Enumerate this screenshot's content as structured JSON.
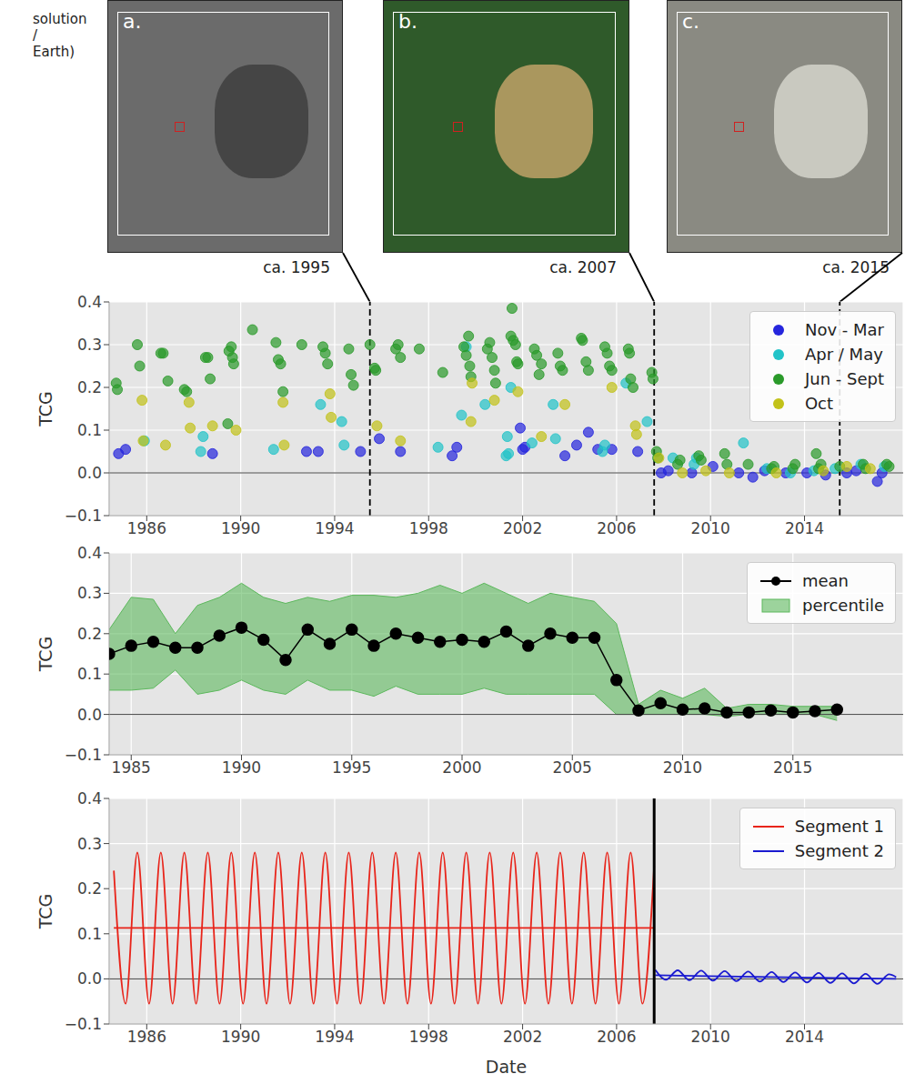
{
  "cropped_text": [
    "solution",
    "/",
    "Earth)"
  ],
  "panels": [
    {
      "letter": "a.",
      "caption": "ca. 1995"
    },
    {
      "letter": "b.",
      "caption": "ca. 2007"
    },
    {
      "letter": "c.",
      "caption": "ca. 2015"
    }
  ],
  "chart_data": [
    {
      "type": "scatter",
      "y_label": "TCG",
      "xlim": [
        1984.4,
        2018.2
      ],
      "xticks": [
        1986,
        1990,
        1994,
        1998,
        2002,
        2006,
        2010,
        2014
      ],
      "ylim": [
        -0.1,
        0.4
      ],
      "yticks": [
        {
          "value": -0.1,
          "label": "−0.1"
        },
        {
          "value": 0,
          "label": "0.0"
        },
        0.1,
        0.2,
        0.3,
        0.4
      ],
      "grid": true,
      "legend": "upper right",
      "baseline": 0,
      "vlines": [
        1995.5,
        2007.6,
        2015.5
      ],
      "series": [
        {
          "name": "Nov - Mar",
          "color": "#2525dd",
          "marker": "circle",
          "x": [
            1984.8,
            1985.1,
            1988.8,
            1992.8,
            1993.3,
            1995.1,
            1995.9,
            1996.8,
            1999.0,
            1999.2,
            2001.9,
            2002.0,
            2002.1,
            2003.8,
            2004.3,
            2004.8,
            2005.2,
            2005.8,
            2006.9,
            2007.9,
            2008.2,
            2009.2,
            2010.1,
            2011.2,
            2011.8,
            2012.3,
            2013.2,
            2014.1,
            2014.9,
            2015.8,
            2016.2,
            2017.1,
            2017.3
          ],
          "values": [
            0.045,
            0.055,
            0.045,
            0.05,
            0.05,
            0.05,
            0.08,
            0.05,
            0.04,
            0.06,
            0.105,
            0.055,
            0.06,
            0.04,
            0.065,
            0.095,
            0.055,
            0.055,
            0.05,
            0.0,
            0.005,
            0.0,
            0.015,
            0.0,
            -0.01,
            0.005,
            0.0,
            0.0,
            -0.005,
            0.0,
            0.005,
            -0.02,
            0.0
          ]
        },
        {
          "name": "Apr / May",
          "color": "#22c3c8",
          "marker": "circle",
          "x": [
            1985.9,
            1988.3,
            1988.4,
            1991.4,
            1993.4,
            1994.3,
            1994.4,
            1998.4,
            1999.4,
            1999.6,
            2000.4,
            2001.3,
            2001.35,
            2001.4,
            2001.5,
            2002.4,
            2003.3,
            2003.4,
            2005.4,
            2005.5,
            2006.4,
            2007.3,
            2008.4,
            2009.3,
            2009.4,
            2011.4,
            2012.4,
            2013.4,
            2014.4,
            2015.3,
            2016.4,
            2017.4
          ],
          "values": [
            0.075,
            0.05,
            0.085,
            0.055,
            0.16,
            0.12,
            0.065,
            0.06,
            0.135,
            0.295,
            0.16,
            0.04,
            0.085,
            0.045,
            0.2,
            0.07,
            0.16,
            0.08,
            0.05,
            0.065,
            0.21,
            0.12,
            0.035,
            0.02,
            0.035,
            0.07,
            0.01,
            0.0,
            0.005,
            0.01,
            0.02,
            0.015
          ]
        },
        {
          "name": "Jun - Sept",
          "color": "#2a9a2a",
          "marker": "circle",
          "x": [
            1984.7,
            1984.75,
            1985.6,
            1985.7,
            1986.6,
            1986.7,
            1986.9,
            1987.6,
            1987.7,
            1988.5,
            1988.6,
            1988.7,
            1989.45,
            1989.5,
            1989.6,
            1989.65,
            1989.7,
            1990.5,
            1991.5,
            1991.6,
            1991.7,
            1991.8,
            1992.6,
            1993.5,
            1993.6,
            1993.7,
            1994.6,
            1994.7,
            1994.8,
            1995.5,
            1995.7,
            1995.75,
            1996.6,
            1996.7,
            1996.8,
            1997.6,
            1998.6,
            1999.5,
            1999.6,
            1999.7,
            1999.75,
            1999.8,
            2000.5,
            2000.6,
            2000.7,
            2000.8,
            2000.85,
            2001.5,
            2001.55,
            2001.6,
            2001.7,
            2001.75,
            2001.8,
            2002.5,
            2002.6,
            2002.7,
            2002.8,
            2003.5,
            2003.6,
            2003.7,
            2004.5,
            2004.55,
            2004.7,
            2004.8,
            2005.5,
            2005.6,
            2005.7,
            2005.8,
            2006.5,
            2006.55,
            2006.6,
            2006.7,
            2007.5,
            2007.55,
            2007.7,
            2007.75,
            2008.6,
            2008.7,
            2009.5,
            2009.6,
            2010.6,
            2010.7,
            2011.6,
            2012.6,
            2012.7,
            2013.5,
            2013.6,
            2014.5,
            2014.6,
            2014.7,
            2015.5,
            2016.5,
            2016.6,
            2017.5,
            2017.6
          ],
          "values": [
            0.21,
            0.195,
            0.3,
            0.25,
            0.28,
            0.28,
            0.215,
            0.195,
            0.19,
            0.27,
            0.27,
            0.22,
            0.115,
            0.285,
            0.295,
            0.27,
            0.255,
            0.335,
            0.305,
            0.265,
            0.255,
            0.19,
            0.3,
            0.295,
            0.28,
            0.255,
            0.29,
            0.23,
            0.205,
            0.3,
            0.245,
            0.24,
            0.29,
            0.3,
            0.27,
            0.29,
            0.235,
            0.295,
            0.275,
            0.32,
            0.25,
            0.225,
            0.29,
            0.305,
            0.27,
            0.24,
            0.21,
            0.32,
            0.385,
            0.31,
            0.3,
            0.26,
            0.255,
            0.29,
            0.275,
            0.23,
            0.255,
            0.28,
            0.25,
            0.24,
            0.315,
            0.31,
            0.26,
            0.24,
            0.295,
            0.28,
            0.25,
            0.24,
            0.29,
            0.28,
            0.22,
            0.2,
            0.235,
            0.22,
            0.05,
            0.035,
            0.02,
            0.03,
            0.04,
            0.03,
            0.045,
            0.02,
            0.02,
            0.01,
            0.015,
            0.01,
            0.02,
            0.045,
            0.01,
            0.02,
            0.015,
            0.02,
            0.01,
            0.02,
            0.015
          ]
        },
        {
          "name": "Oct",
          "color": "#c2c21a",
          "marker": "circle",
          "x": [
            1985.8,
            1985.85,
            1986.8,
            1987.8,
            1987.85,
            1988.8,
            1989.8,
            1991.8,
            1991.85,
            1993.8,
            1993.85,
            1995.8,
            1996.8,
            1999.8,
            1999.85,
            2000.8,
            2001.8,
            2002.8,
            2003.8,
            2005.8,
            2006.8,
            2006.85,
            2007.8,
            2008.8,
            2009.8,
            2010.8,
            2012.8,
            2014.8,
            2015.8,
            2016.8
          ],
          "values": [
            0.17,
            0.075,
            0.065,
            0.165,
            0.105,
            0.11,
            0.1,
            0.165,
            0.065,
            0.185,
            0.13,
            0.11,
            0.075,
            0.12,
            0.21,
            0.17,
            0.19,
            0.085,
            0.16,
            0.2,
            0.11,
            0.09,
            0.035,
            0.0,
            0.005,
            0.0,
            0.0,
            0.005,
            0.015,
            0.01
          ]
        }
      ]
    },
    {
      "type": "line",
      "y_label": "TCG",
      "xlim": [
        1984,
        2020
      ],
      "xticks": [
        1985,
        1990,
        1995,
        2000,
        2005,
        2010,
        2015
      ],
      "ylim": [
        -0.1,
        0.4
      ],
      "yticks": [
        {
          "value": -0.1,
          "label": "−0.1"
        },
        {
          "value": 0,
          "label": "0.0"
        },
        0.1,
        0.2,
        0.3,
        0.4
      ],
      "grid": true,
      "legend": "upper right",
      "baseline": 0,
      "x": [
        1984,
        1985,
        1986,
        1987,
        1988,
        1989,
        1990,
        1991,
        1992,
        1993,
        1994,
        1995,
        1996,
        1997,
        1998,
        1999,
        2000,
        2001,
        2002,
        2003,
        2004,
        2005,
        2006,
        2007,
        2008,
        2009,
        2010,
        2011,
        2012,
        2013,
        2014,
        2015,
        2016,
        2017
      ],
      "series": [
        {
          "name": "mean",
          "type": "line",
          "color": "#000000",
          "marker": "circle",
          "values": [
            0.15,
            0.17,
            0.18,
            0.165,
            0.165,
            0.195,
            0.215,
            0.185,
            0.135,
            0.21,
            0.175,
            0.21,
            0.17,
            0.2,
            0.19,
            0.18,
            0.185,
            0.18,
            0.205,
            0.17,
            0.2,
            0.19,
            0.19,
            0.085,
            0.01,
            0.028,
            0.012,
            0.015,
            0.005,
            0.005,
            0.01,
            0.005,
            0.008,
            0.012
          ]
        },
        {
          "name": "percentile",
          "type": "area",
          "color": "#5cb85c",
          "lower": [
            0.06,
            0.06,
            0.065,
            0.11,
            0.05,
            0.06,
            0.085,
            0.06,
            0.05,
            0.085,
            0.06,
            0.06,
            0.045,
            0.07,
            0.05,
            0.05,
            0.05,
            0.065,
            0.05,
            0.05,
            0.05,
            0.05,
            0.05,
            0.0,
            0.0,
            0.0,
            0.0,
            0.0,
            -0.005,
            0.0,
            0.0,
            0.0,
            0.0,
            -0.015
          ],
          "upper": [
            0.21,
            0.29,
            0.285,
            0.2,
            0.27,
            0.29,
            0.325,
            0.29,
            0.275,
            0.29,
            0.28,
            0.295,
            0.295,
            0.29,
            0.3,
            0.32,
            0.3,
            0.325,
            0.3,
            0.275,
            0.3,
            0.29,
            0.28,
            0.225,
            0.025,
            0.06,
            0.04,
            0.065,
            0.015,
            0.025,
            0.025,
            0.02,
            0.02,
            0.02
          ]
        }
      ]
    },
    {
      "type": "line",
      "y_label": "TCG",
      "x_label": "Date",
      "xlim": [
        1984.4,
        2018.2
      ],
      "xticks": [
        1986,
        1990,
        1994,
        1998,
        2002,
        2006,
        2010,
        2014
      ],
      "ylim": [
        -0.1,
        0.4
      ],
      "yticks": [
        {
          "value": -0.1,
          "label": "−0.1"
        },
        {
          "value": 0,
          "label": "0.0"
        },
        0.1,
        0.2,
        0.3,
        0.4
      ],
      "grid": true,
      "legend": "upper right",
      "baseline": 0,
      "breakpoint": 2007.6,
      "series": [
        {
          "name": "Segment 1",
          "color": "#e8241a",
          "x": [
            1984.6,
            1985.1,
            1985.6,
            1986.1,
            1986.6,
            1987.1,
            1987.6,
            1988.1,
            1988.6,
            1989.1,
            1989.6,
            1990.1,
            1990.6,
            1991.1,
            1991.6,
            1992.1,
            1992.6,
            1993.1,
            1993.6,
            1994.1,
            1994.6,
            1995.1,
            1995.6,
            1996.1,
            1996.6,
            1997.1,
            1997.6,
            1998.1,
            1998.6,
            1999.1,
            1999.6,
            2000.1,
            2000.6,
            2001.1,
            2001.6,
            2002.1,
            2002.6,
            2003.1,
            2003.6,
            2004.1,
            2004.6,
            2005.1,
            2005.6,
            2006.1,
            2006.6,
            2007.1,
            2007.6
          ],
          "values": [
            0.24,
            -0.055,
            0.28,
            -0.055,
            0.28,
            -0.055,
            0.28,
            -0.055,
            0.28,
            -0.055,
            0.28,
            -0.055,
            0.28,
            -0.055,
            0.28,
            -0.055,
            0.28,
            -0.055,
            0.28,
            -0.055,
            0.28,
            -0.055,
            0.28,
            -0.055,
            0.28,
            -0.055,
            0.28,
            -0.055,
            0.28,
            -0.055,
            0.28,
            -0.055,
            0.28,
            -0.055,
            0.28,
            -0.055,
            0.28,
            -0.055,
            0.28,
            -0.055,
            0.28,
            -0.055,
            0.28,
            -0.055,
            0.28,
            -0.055,
            0.25
          ],
          "trend_x": [
            1984.6,
            2007.6
          ],
          "trend_values": [
            0.113,
            0.113
          ]
        },
        {
          "name": "Segment 2",
          "color": "#1a1ad0",
          "x": [
            2007.65,
            2008.1,
            2008.6,
            2009.1,
            2009.6,
            2010.1,
            2010.6,
            2011.1,
            2011.6,
            2012.1,
            2012.6,
            2013.1,
            2013.6,
            2014.1,
            2014.6,
            2015.1,
            2015.6,
            2016.1,
            2016.6,
            2017.1,
            2017.6,
            2017.9
          ],
          "values": [
            0.02,
            -0.002,
            0.019,
            -0.003,
            0.018,
            -0.004,
            0.017,
            -0.005,
            0.016,
            -0.006,
            0.015,
            -0.007,
            0.014,
            -0.008,
            0.013,
            -0.009,
            0.012,
            -0.01,
            0.011,
            -0.011,
            0.01,
            0.004
          ],
          "trend_x": [
            2007.65,
            2017.9
          ],
          "trend_values": [
            0.008,
            0.0
          ]
        }
      ]
    }
  ]
}
